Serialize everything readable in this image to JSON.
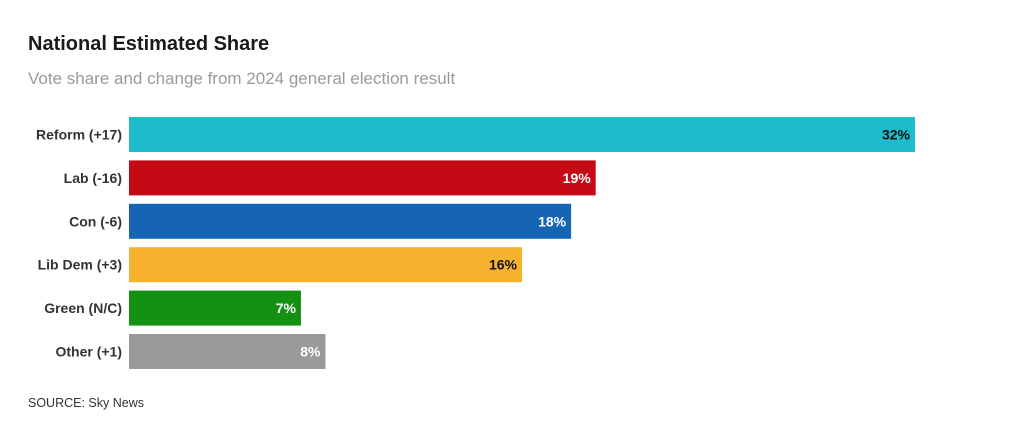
{
  "header": {
    "title": "National Estimated Share",
    "subtitle": "Vote share and change from 2024 general election result"
  },
  "footer": {
    "source": "SOURCE: Sky News"
  },
  "chart_data": {
    "type": "bar",
    "orientation": "horizontal",
    "title": "National Estimated Share",
    "subtitle": "Vote share and change from 2024 general election result",
    "categories": [
      "Reform (+17)",
      "Lab (-16)",
      "Con (-6)",
      "Lib Dem (+3)",
      "Green (N/C)",
      "Other (+1)"
    ],
    "values": [
      32,
      19,
      18,
      16,
      7,
      8
    ],
    "value_labels": [
      "32%",
      "19%",
      "18%",
      "16%",
      "7%",
      "8%"
    ],
    "colors": [
      "#1dbccb",
      "#c50a16",
      "#1565b4",
      "#f6b22c",
      "#149112",
      "#9a9a9a"
    ],
    "label_colors": [
      "#111111",
      "#ffffff",
      "#ffffff",
      "#111111",
      "#ffffff",
      "#ffffff"
    ],
    "xlim": [
      0,
      32
    ],
    "grid": false,
    "legend": "none",
    "source": "SOURCE: Sky News"
  }
}
